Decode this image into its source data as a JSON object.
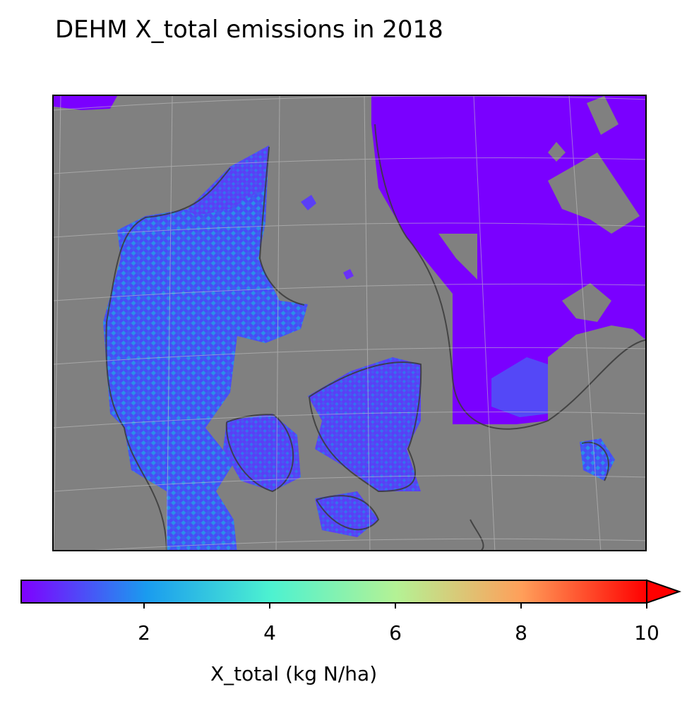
{
  "title": "DEHM X_total emissions in 2018",
  "map": {
    "background_color": "#808080",
    "land_outline_color": "#3a3a3a",
    "gridline_color": "#bdbdbd",
    "colormap": "rainbow"
  },
  "colorbar": {
    "label": "X_total (kg N/ha)",
    "ticks": [
      "2",
      "4",
      "6",
      "8",
      "10"
    ],
    "tick_values": [
      2,
      4,
      6,
      8,
      10
    ],
    "vmin": 0,
    "vmax": 10,
    "extend": "max"
  }
}
